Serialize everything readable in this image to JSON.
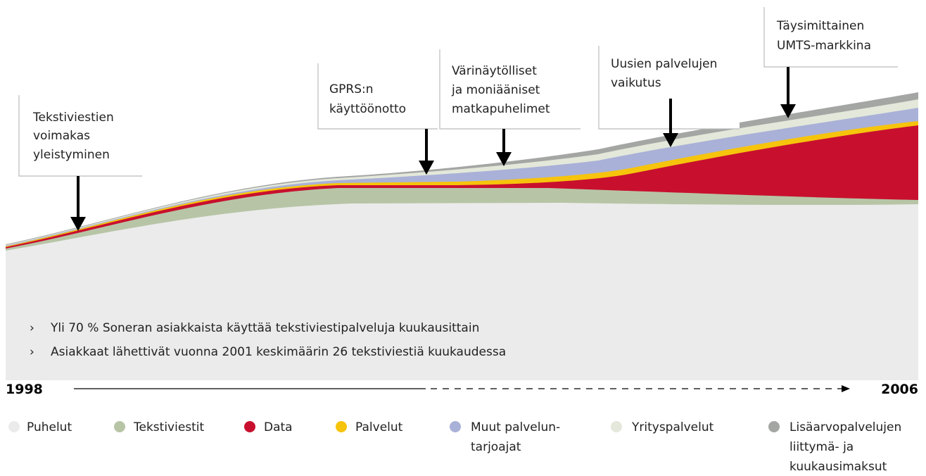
{
  "callouts": [
    {
      "lines": [
        "Tekstiviestien",
        "voimakas",
        "yleistyminen"
      ]
    },
    {
      "lines": [
        "GPRS:n",
        "käyttöönotto"
      ]
    },
    {
      "lines": [
        "Värinäytölliset",
        "ja moniääniset",
        "matkapuhelimet"
      ]
    },
    {
      "lines": [
        "Uusien palvelujen",
        "vaikutus"
      ]
    },
    {
      "lines": [
        "Täysimittainen",
        "UMTS-markkina"
      ]
    }
  ],
  "bullets": [
    "Yli 70 % Soneran asiakkaista käyttää tekstiviestipalveluja kuukausittain",
    "Asiakkaat lähettivät vuonna 2001 keskimäärin 26 tekstiviestiä kuukaudessa"
  ],
  "timeline": {
    "start": "1998",
    "end": "2006"
  },
  "legend": [
    {
      "lines": [
        "Puhelut"
      ]
    },
    {
      "lines": [
        "Tekstiviestit"
      ]
    },
    {
      "lines": [
        "Data"
      ]
    },
    {
      "lines": [
        "Palvelut"
      ]
    },
    {
      "lines": [
        "Muut palvelun-",
        "tarjoajat"
      ]
    },
    {
      "lines": [
        "Yrityspalvelut"
      ]
    },
    {
      "lines": [
        "Lisäarvopalvelujen",
        "liittymä- ja",
        "kuukausimaksut"
      ]
    }
  ]
}
